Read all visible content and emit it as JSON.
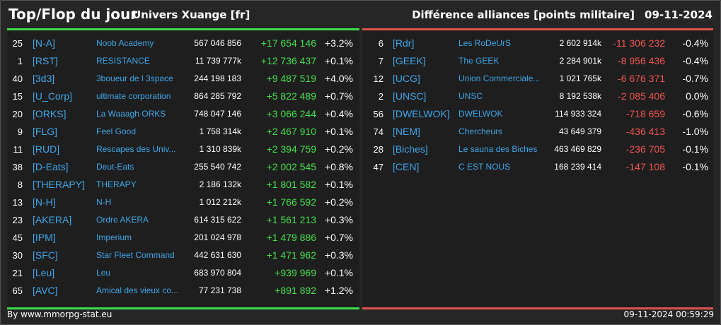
{
  "header": {
    "title": "Top/Flop du jour",
    "universe": "Univers Xuange [fr]",
    "metric": "Différence alliances [points militaire]",
    "date": "09-11-2024"
  },
  "colors": {
    "positive": "#44e04c",
    "negative": "#ef5550",
    "tag": "#3fa6e8"
  },
  "top": [
    {
      "rank": "25",
      "tag": "[N-A]",
      "name": "Noob Academy",
      "points": "567 046 856",
      "diff": "+17 654 146",
      "pct": "+3.2%"
    },
    {
      "rank": "1",
      "tag": "[RST]",
      "name": "RESISTANCE",
      "points": "11 739 777k",
      "diff": "+12 736 437",
      "pct": "+0.1%"
    },
    {
      "rank": "40",
      "tag": "[3d3]",
      "name": "3boueur de l 3space",
      "points": "244 198 183",
      "diff": "+9 487 519",
      "pct": "+4.0%"
    },
    {
      "rank": "15",
      "tag": "[U_Corp]",
      "name": "ultimate corporation",
      "points": "864 285 792",
      "diff": "+5 822 489",
      "pct": "+0.7%"
    },
    {
      "rank": "20",
      "tag": "[ORKS]",
      "name": "La Waaagh ORKS",
      "points": "748 047 146",
      "diff": "+3 066 244",
      "pct": "+0.4%"
    },
    {
      "rank": "9",
      "tag": "[FLG]",
      "name": "Feel Good",
      "points": "1 758 314k",
      "diff": "+2 467 910",
      "pct": "+0.1%"
    },
    {
      "rank": "11",
      "tag": "[RUD]",
      "name": "Rescapes des Univ...",
      "points": "1 310 839k",
      "diff": "+2 394 759",
      "pct": "+0.2%"
    },
    {
      "rank": "38",
      "tag": "[D-Eats]",
      "name": "Deut-Eats",
      "points": "255 540 742",
      "diff": "+2 002 545",
      "pct": "+0.8%"
    },
    {
      "rank": "8",
      "tag": "[THERAPY]",
      "name": "THERAPY",
      "points": "2 186 132k",
      "diff": "+1 801 582",
      "pct": "+0.1%"
    },
    {
      "rank": "13",
      "tag": "[N-H]",
      "name": "N-H",
      "points": "1 012 212k",
      "diff": "+1 766 592",
      "pct": "+0.2%"
    },
    {
      "rank": "23",
      "tag": "[AKERA]",
      "name": "Ordre AKERA",
      "points": "614 315 622",
      "diff": "+1 561 213",
      "pct": "+0.3%"
    },
    {
      "rank": "45",
      "tag": "[IPM]",
      "name": "Imperium",
      "points": "201 024 978",
      "diff": "+1 479 886",
      "pct": "+0.7%"
    },
    {
      "rank": "30",
      "tag": "[SFC]",
      "name": "Star Fleet Command",
      "points": "442 631 630",
      "diff": "+1 471 962",
      "pct": "+0.3%"
    },
    {
      "rank": "21",
      "tag": "[Leu]",
      "name": "Leu",
      "points": "683 970 804",
      "diff": "+939 969",
      "pct": "+0.1%"
    },
    {
      "rank": "65",
      "tag": "[AVC]",
      "name": "Amical des vieux co...",
      "points": "77 231 738",
      "diff": "+891 892",
      "pct": "+1.2%"
    }
  ],
  "flop": [
    {
      "rank": "6",
      "tag": "[Rdr]",
      "name": "Les RoDeUrS",
      "points": "2 602 914k",
      "diff": "-11 306 232",
      "pct": "-0.4%"
    },
    {
      "rank": "7",
      "tag": "[GEEK]",
      "name": "The GEEK",
      "points": "2 284 901k",
      "diff": "-8 956 436",
      "pct": "-0.4%"
    },
    {
      "rank": "12",
      "tag": "[UCG]",
      "name": "Union Commerciale...",
      "points": "1 021 765k",
      "diff": "-6 676 371",
      "pct": "-0.7%"
    },
    {
      "rank": "2",
      "tag": "[UNSC]",
      "name": "UNSC",
      "points": "8 192 538k",
      "diff": "-2 085 406",
      "pct": "0.0%"
    },
    {
      "rank": "56",
      "tag": "[DWELWOK]",
      "name": "DWELWOK",
      "points": "114 933 324",
      "diff": "-718 659",
      "pct": "-0.6%"
    },
    {
      "rank": "74",
      "tag": "[NEM]",
      "name": "Chercheurs",
      "points": "43 649 379",
      "diff": "-436 413",
      "pct": "-1.0%"
    },
    {
      "rank": "28",
      "tag": "[Biches]",
      "name": "Le sauna des Biches",
      "points": "463 469 829",
      "diff": "-236 705",
      "pct": "-0.1%"
    },
    {
      "rank": "47",
      "tag": "[CEN]",
      "name": "C EST NOUS",
      "points": "168 239 414",
      "diff": "-147 108",
      "pct": "-0.1%"
    }
  ],
  "footer": {
    "source": "By www.mmorpg-stat.eu",
    "timestamp": "09-11-2024 00:59:29"
  }
}
